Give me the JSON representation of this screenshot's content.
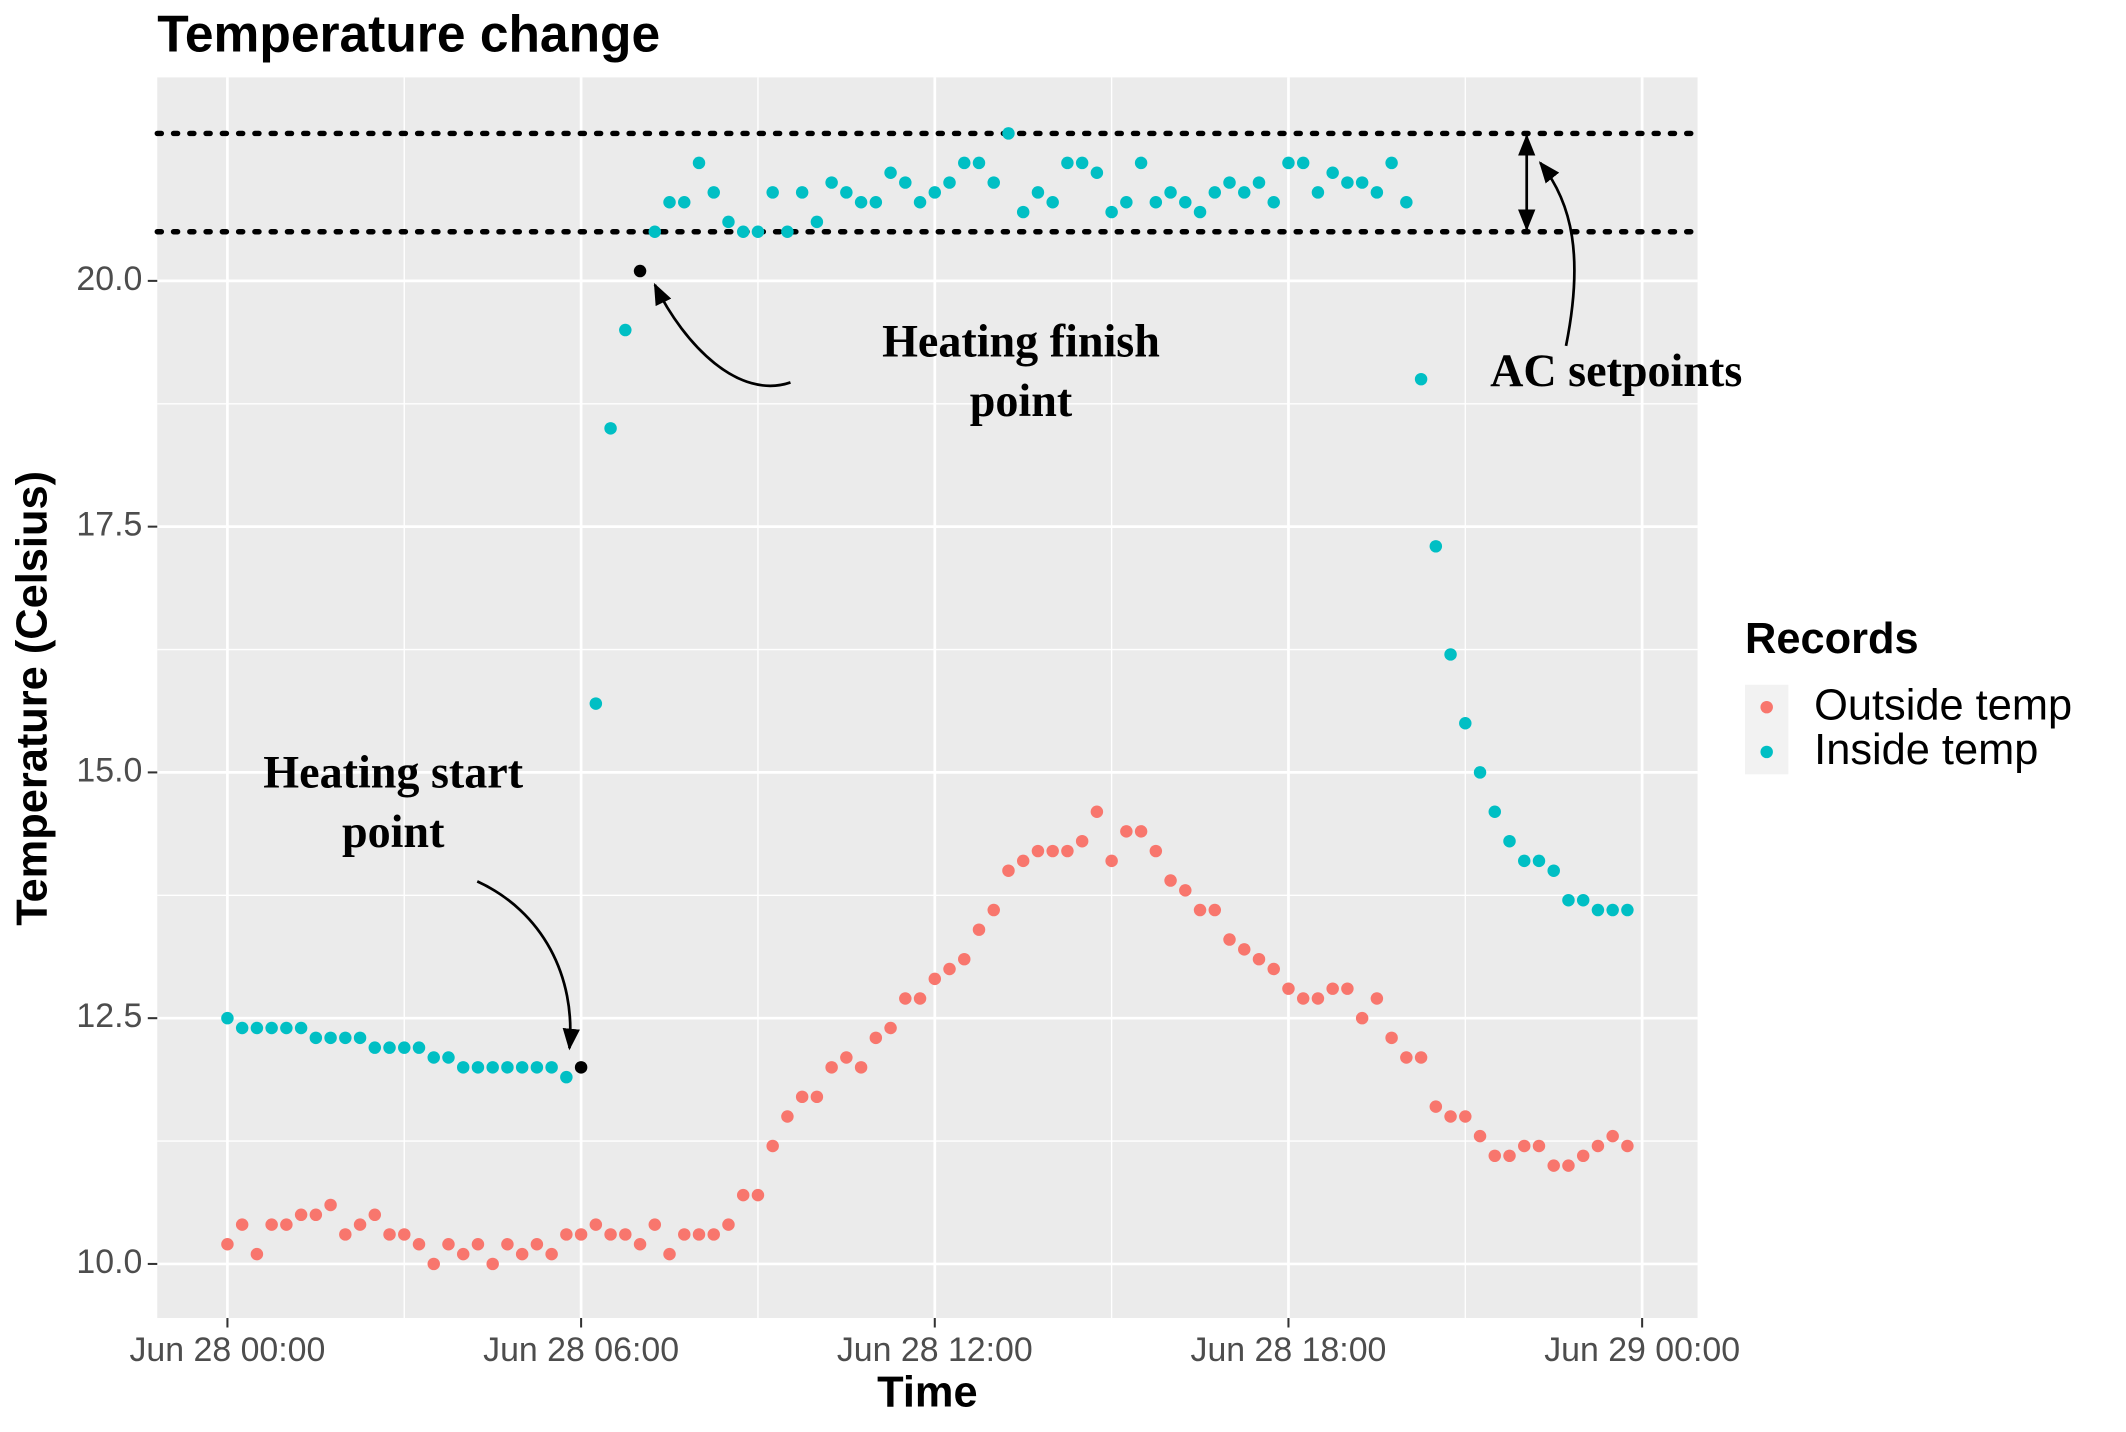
{
  "chart_data": {
    "type": "scatter",
    "title": "Temperature change",
    "x_label": "Time",
    "y_label": "Temperature (Celsius)",
    "x": [
      0,
      0.25,
      0.5,
      0.75,
      1,
      1.25,
      1.5,
      1.75,
      2,
      2.25,
      2.5,
      2.75,
      3,
      3.25,
      3.5,
      3.75,
      4,
      4.25,
      4.5,
      4.75,
      5,
      5.25,
      5.5,
      5.75,
      6,
      6.25,
      6.5,
      6.75,
      7,
      7.25,
      7.5,
      7.75,
      8,
      8.25,
      8.5,
      8.75,
      9,
      9.25,
      9.5,
      9.75,
      10,
      10.25,
      10.5,
      10.75,
      11,
      11.25,
      11.5,
      11.75,
      12,
      12.25,
      12.5,
      12.75,
      13,
      13.25,
      13.5,
      13.75,
      14,
      14.25,
      14.5,
      14.75,
      15,
      15.25,
      15.5,
      15.75,
      16,
      16.25,
      16.5,
      16.75,
      17,
      17.25,
      17.5,
      17.75,
      18,
      18.25,
      18.5,
      18.75,
      19,
      19.25,
      19.5,
      19.75,
      20,
      20.25,
      20.5,
      20.75,
      21,
      21.25,
      21.5,
      21.75,
      22,
      22.25,
      22.5,
      22.75,
      23,
      23.25,
      23.5,
      23.75
    ],
    "series": [
      {
        "name": "Outside temp",
        "color": "#F8766D",
        "values": [
          10.2,
          10.4,
          10.1,
          10.4,
          10.4,
          10.5,
          10.5,
          10.6,
          10.3,
          10.4,
          10.5,
          10.3,
          10.3,
          10.2,
          10.0,
          10.2,
          10.1,
          10.2,
          10.0,
          10.2,
          10.1,
          10.2,
          10.1,
          10.3,
          10.3,
          10.4,
          10.3,
          10.3,
          10.2,
          10.4,
          10.1,
          10.3,
          10.3,
          10.3,
          10.4,
          10.7,
          10.7,
          11.2,
          11.5,
          11.7,
          11.7,
          12.0,
          12.1,
          12.0,
          12.3,
          12.4,
          12.7,
          12.7,
          12.9,
          13.0,
          13.1,
          13.4,
          13.6,
          14.0,
          14.1,
          14.2,
          14.2,
          14.2,
          14.3,
          14.6,
          14.1,
          14.4,
          14.4,
          14.2,
          13.9,
          13.8,
          13.6,
          13.6,
          13.3,
          13.2,
          13.1,
          13.0,
          12.8,
          12.7,
          12.7,
          12.8,
          12.8,
          12.5,
          12.7,
          12.3,
          12.1,
          12.1,
          11.6,
          11.5,
          11.5,
          11.3,
          11.1,
          11.1,
          11.2,
          11.2,
          11.0,
          11.0,
          11.1,
          11.2,
          11.3,
          11.2
        ]
      },
      {
        "name": "Inside temp",
        "color": "#00BFC4",
        "values": [
          12.5,
          12.4,
          12.4,
          12.4,
          12.4,
          12.4,
          12.3,
          12.3,
          12.3,
          12.3,
          12.2,
          12.2,
          12.2,
          12.2,
          12.1,
          12.1,
          12.0,
          12.0,
          12.0,
          12.0,
          12.0,
          12.0,
          12.0,
          11.9,
          null,
          15.7,
          18.5,
          19.5,
          null,
          20.5,
          20.8,
          20.8,
          21.2,
          20.9,
          20.6,
          20.5,
          20.5,
          20.9,
          20.5,
          20.9,
          20.6,
          21.0,
          20.9,
          20.8,
          20.8,
          21.1,
          21.0,
          20.8,
          20.9,
          21.0,
          21.2,
          21.2,
          21.0,
          21.5,
          20.7,
          20.9,
          20.8,
          21.2,
          21.2,
          21.1,
          20.7,
          20.8,
          21.2,
          20.8,
          20.9,
          20.8,
          20.7,
          20.9,
          21.0,
          20.9,
          21.0,
          20.8,
          21.2,
          21.2,
          20.9,
          21.1,
          21.0,
          21.0,
          20.9,
          21.2,
          20.8,
          19.0,
          17.3,
          16.2,
          15.5,
          15.0,
          14.6,
          14.3,
          14.1,
          14.1,
          14.0,
          13.7,
          13.7,
          13.6,
          13.6,
          13.6
        ]
      }
    ],
    "xlim": [
      -1.19,
      24.94
    ],
    "xticks": [
      {
        "value": 0,
        "label": "Jun 28 00:00"
      },
      {
        "value": 6,
        "label": "Jun 28 06:00"
      },
      {
        "value": 12,
        "label": "Jun 28 12:00"
      },
      {
        "value": 18,
        "label": "Jun 28 18:00"
      },
      {
        "value": 24,
        "label": "Jun 29 00:00"
      }
    ],
    "ylim": [
      9.45,
      22.07
    ],
    "yticks": [
      {
        "value": 10,
        "label": "10.0"
      },
      {
        "value": 12.5,
        "label": "12.5"
      },
      {
        "value": 15,
        "label": "15.0"
      },
      {
        "value": 17.5,
        "label": "17.5"
      },
      {
        "value": 20,
        "label": "20.0"
      }
    ],
    "grid": true,
    "legend": {
      "title": "Records",
      "position": "right"
    },
    "reference_lines": [
      21.5,
      20.5
    ],
    "annotations": [
      {
        "text": [
          "Heating start",
          "point"
        ],
        "x": 6,
        "y": 12.0
      },
      {
        "text": [
          "Heating finish",
          "point"
        ],
        "x": 7,
        "y": 20.1
      },
      {
        "text": [
          "AC setpoints"
        ]
      }
    ]
  }
}
